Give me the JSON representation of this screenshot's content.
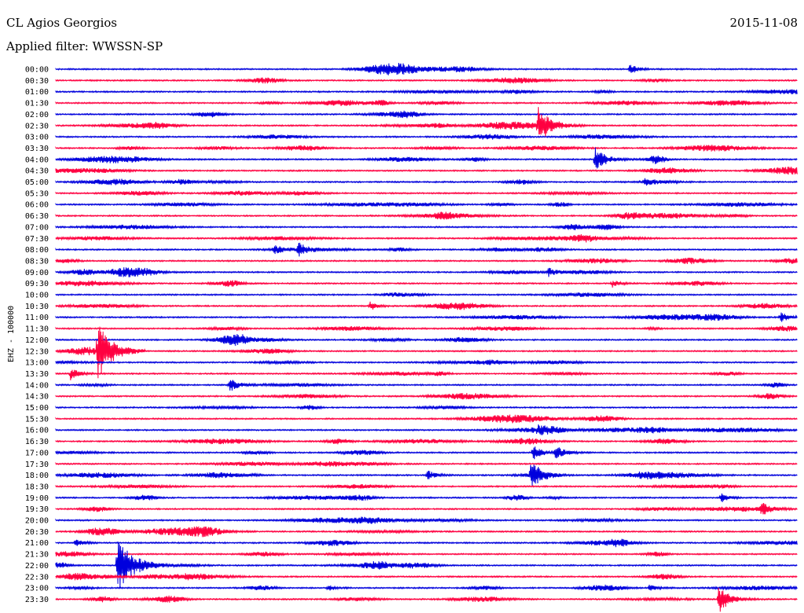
{
  "header": {
    "station": "CL Agios Georgios",
    "date": "2015-11-08",
    "filter": "Applied filter: WWSSN-SP"
  },
  "chart_data": {
    "type": "line",
    "title": "CL Agios Georgios",
    "subtitle": "Applied filter: WWSSN-SP",
    "date": "2015-11-08",
    "ylabel": "EHZ - 100000",
    "row_labels": [
      "00:00",
      "00:30",
      "01:00",
      "01:30",
      "02:00",
      "02:30",
      "03:00",
      "03:30",
      "04:00",
      "04:30",
      "05:00",
      "05:30",
      "06:00",
      "06:30",
      "07:00",
      "07:30",
      "08:00",
      "08:30",
      "09:00",
      "09:30",
      "10:00",
      "10:30",
      "11:00",
      "11:30",
      "12:00",
      "12:30",
      "13:00",
      "13:30",
      "14:00",
      "14:30",
      "15:00",
      "15:30",
      "16:00",
      "16:30",
      "17:00",
      "17:30",
      "18:00",
      "18:30",
      "19:00",
      "19:30",
      "20:00",
      "20:30",
      "21:00",
      "21:30",
      "22:00",
      "22:30",
      "23:00",
      "23:30"
    ],
    "trace_colors": [
      "#0000dd",
      "#ff0040"
    ],
    "grid": false,
    "events": [
      {
        "row": 0,
        "minute": 23.2,
        "amplitude": 7
      },
      {
        "row": 5,
        "minute": 19.5,
        "amplitude": 22
      },
      {
        "row": 8,
        "minute": 21.8,
        "amplitude": 16
      },
      {
        "row": 10,
        "minute": 23.8,
        "amplitude": 6
      },
      {
        "row": 16,
        "minute": 8.8,
        "amplitude": 7
      },
      {
        "row": 16,
        "minute": 9.8,
        "amplitude": 8
      },
      {
        "row": 18,
        "minute": 19.9,
        "amplitude": 6
      },
      {
        "row": 19,
        "minute": 22.5,
        "amplitude": 5
      },
      {
        "row": 21,
        "minute": 12.7,
        "amplitude": 6
      },
      {
        "row": 22,
        "minute": 29.3,
        "amplitude": 7
      },
      {
        "row": 25,
        "minute": 1.7,
        "amplitude": 32
      },
      {
        "row": 27,
        "minute": 0.6,
        "amplitude": 8
      },
      {
        "row": 28,
        "minute": 7.0,
        "amplitude": 10
      },
      {
        "row": 32,
        "minute": 19.5,
        "amplitude": 4
      },
      {
        "row": 34,
        "minute": 19.3,
        "amplitude": 10
      },
      {
        "row": 34,
        "minute": 20.2,
        "amplitude": 10
      },
      {
        "row": 36,
        "minute": 15.0,
        "amplitude": 7
      },
      {
        "row": 36,
        "minute": 19.2,
        "amplitude": 16
      },
      {
        "row": 38,
        "minute": 26.9,
        "amplitude": 6
      },
      {
        "row": 39,
        "minute": 28.5,
        "amplitude": 9
      },
      {
        "row": 42,
        "minute": 0.8,
        "amplitude": 6
      },
      {
        "row": 44,
        "minute": 2.5,
        "amplitude": 34
      },
      {
        "row": 46,
        "minute": 11.0,
        "amplitude": 4
      },
      {
        "row": 46,
        "minute": 24.0,
        "amplitude": 5
      },
      {
        "row": 47,
        "minute": 26.8,
        "amplitude": 18
      }
    ]
  }
}
